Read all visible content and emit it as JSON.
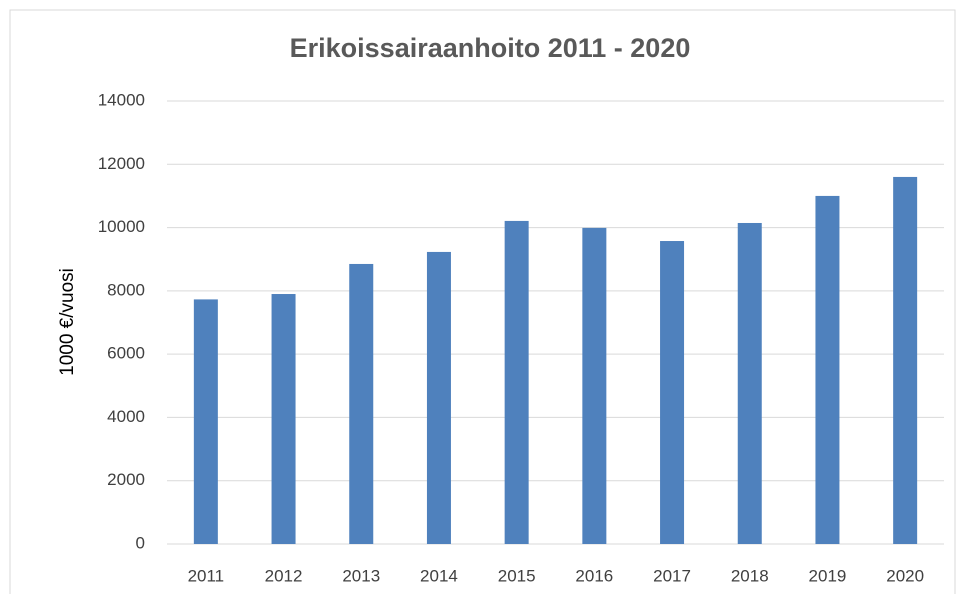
{
  "chart_data": {
    "type": "bar",
    "title": "Erikoissairaanhoito 2011 - 2020",
    "y_label": "1000 €/vuosi",
    "categories": [
      "2011",
      "2012",
      "2013",
      "2014",
      "2015",
      "2016",
      "2017",
      "2018",
      "2019",
      "2020"
    ],
    "values": [
      7730,
      7900,
      8850,
      9230,
      10210,
      9990,
      9575,
      10145,
      11000,
      11600
    ],
    "color": "#4f81bd",
    "ylim": [
      0,
      14000
    ],
    "yticks": [
      0,
      2000,
      4000,
      6000,
      8000,
      10000,
      12000,
      14000
    ],
    "grid": true
  }
}
